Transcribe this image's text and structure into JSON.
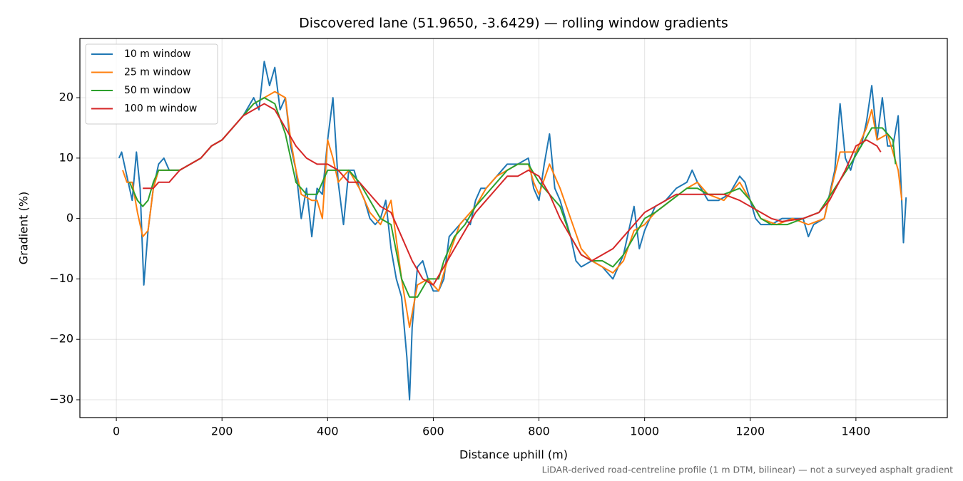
{
  "chart_data": {
    "type": "line",
    "title": "Discovered lane (51.9650, -3.6429) — rolling window gradients",
    "xlabel": "Distance uphill (m)",
    "ylabel": "Gradient (%)",
    "footnote": "LiDAR-derived road-centreline profile (1 m DTM, bilinear) — not a surveyed asphalt gradient",
    "xlim": [
      -69,
      1573
    ],
    "ylim": [
      -32.95,
      29.8
    ],
    "xticks": [
      0,
      200,
      400,
      600,
      800,
      1000,
      1200,
      1400
    ],
    "yticks": [
      {
        "value": -30,
        "label": "−30"
      },
      {
        "value": -20,
        "label": "−20"
      },
      {
        "value": -10,
        "label": "−10"
      },
      0,
      10,
      20
    ],
    "grid": true,
    "legend": "upper left",
    "series": [
      {
        "name": "10 m window",
        "color": "#1f77b4",
        "x": [
          5,
          10,
          20,
          30,
          38,
          45,
          52,
          60,
          70,
          80,
          90,
          100,
          120,
          140,
          160,
          180,
          200,
          220,
          240,
          260,
          270,
          280,
          290,
          300,
          310,
          320,
          330,
          340,
          350,
          360,
          370,
          380,
          390,
          400,
          410,
          420,
          430,
          440,
          450,
          460,
          470,
          480,
          490,
          500,
          510,
          520,
          530,
          540,
          550,
          555,
          560,
          570,
          580,
          590,
          600,
          610,
          620,
          630,
          640,
          660,
          670,
          680,
          690,
          700,
          720,
          740,
          760,
          780,
          790,
          800,
          810,
          820,
          830,
          840,
          850,
          860,
          870,
          880,
          900,
          920,
          940,
          960,
          980,
          990,
          1000,
          1020,
          1040,
          1060,
          1080,
          1090,
          1100,
          1120,
          1140,
          1160,
          1180,
          1190,
          1200,
          1210,
          1220,
          1240,
          1260,
          1280,
          1300,
          1310,
          1320,
          1340,
          1350,
          1360,
          1370,
          1380,
          1390,
          1400,
          1410,
          1420,
          1430,
          1440,
          1450,
          1460,
          1470,
          1480,
          1490,
          1495
        ],
        "values": [
          10,
          11,
          7,
          3,
          11,
          5,
          -11,
          -2,
          5,
          9,
          10,
          8,
          8,
          9,
          10,
          12,
          13,
          15,
          17,
          20,
          18,
          26,
          22,
          25,
          18,
          20,
          12,
          8,
          0,
          5,
          -3,
          5,
          4,
          13,
          20,
          6,
          -1,
          8,
          8,
          5,
          3,
          0,
          -1,
          0,
          3,
          -5,
          -10,
          -13,
          -23,
          -30,
          -18,
          -8,
          -7,
          -10,
          -12,
          -12,
          -10,
          -3,
          -2,
          0,
          -1,
          3,
          5,
          5,
          7,
          9,
          9,
          10,
          5,
          3,
          9,
          14,
          5,
          3,
          0,
          -3,
          -7,
          -8,
          -7,
          -8,
          -10,
          -6,
          2,
          -5,
          -2,
          2,
          3,
          5,
          6,
          8,
          6,
          3,
          3,
          4,
          7,
          6,
          3,
          0,
          -1,
          -1,
          0,
          0,
          0,
          -3,
          -1,
          0,
          4,
          8,
          19,
          10,
          8,
          11,
          12,
          16,
          22,
          13,
          20,
          12,
          12,
          17,
          -4,
          3.5
        ]
      },
      {
        "name": "25 m window",
        "color": "#ff7f0e",
        "x": [
          12,
          20,
          30,
          40,
          50,
          60,
          70,
          80,
          100,
          120,
          140,
          160,
          180,
          200,
          220,
          240,
          260,
          280,
          300,
          320,
          330,
          340,
          350,
          370,
          380,
          390,
          400,
          410,
          420,
          440,
          460,
          480,
          500,
          520,
          540,
          555,
          570,
          590,
          610,
          630,
          650,
          680,
          700,
          720,
          740,
          760,
          780,
          790,
          800,
          820,
          840,
          860,
          880,
          900,
          920,
          940,
          960,
          980,
          1000,
          1020,
          1050,
          1080,
          1100,
          1120,
          1150,
          1180,
          1200,
          1220,
          1250,
          1280,
          1310,
          1340,
          1370,
          1400,
          1420,
          1430,
          1440,
          1460,
          1480,
          1487
        ],
        "values": [
          8,
          6,
          6,
          1,
          -3,
          -2,
          5,
          8,
          8,
          8,
          9,
          10,
          12,
          13,
          15,
          17,
          19,
          20,
          21,
          20,
          13,
          8,
          4,
          3,
          3,
          0,
          13,
          10,
          6,
          8,
          5,
          1,
          -1,
          3,
          -10,
          -18,
          -11,
          -10,
          -12,
          -6,
          -1,
          2,
          5,
          7,
          8,
          9,
          9,
          6,
          4,
          9,
          5,
          0,
          -5,
          -7,
          -8,
          -9,
          -7,
          -2,
          -1,
          1,
          3,
          5,
          6,
          4,
          3,
          6,
          3,
          0,
          -1,
          0,
          -1,
          0,
          11,
          11,
          15,
          18,
          13,
          14,
          8,
          3
        ]
      },
      {
        "name": "50 m window",
        "color": "#2ca02c",
        "x": [
          25,
          40,
          50,
          60,
          70,
          80,
          100,
          120,
          140,
          160,
          180,
          200,
          220,
          240,
          260,
          280,
          300,
          320,
          340,
          360,
          380,
          400,
          420,
          440,
          460,
          480,
          500,
          520,
          540,
          555,
          570,
          590,
          610,
          620,
          640,
          660,
          680,
          700,
          720,
          740,
          760,
          780,
          800,
          820,
          840,
          860,
          880,
          900,
          920,
          940,
          960,
          980,
          1000,
          1020,
          1050,
          1080,
          1100,
          1120,
          1150,
          1180,
          1200,
          1220,
          1240,
          1270,
          1300,
          1330,
          1360,
          1390,
          1410,
          1430,
          1450,
          1470,
          1475
        ],
        "values": [
          6,
          3,
          2,
          3,
          6,
          8,
          8,
          8,
          9,
          10,
          12,
          13,
          15,
          17,
          19,
          20,
          19,
          14,
          6,
          4,
          4,
          8,
          8,
          8,
          6,
          3,
          0,
          -1,
          -10,
          -13,
          -13,
          -10,
          -10,
          -7,
          -3,
          -1,
          2,
          4,
          6,
          8,
          9,
          9,
          6,
          4,
          2,
          -3,
          -6,
          -7,
          -7,
          -8,
          -6,
          -3,
          0,
          1,
          3,
          5,
          5,
          4,
          4,
          5,
          3,
          0,
          -1,
          -1,
          0,
          1,
          5,
          9,
          12,
          15,
          15,
          13,
          9
        ]
      },
      {
        "name": "100 m window",
        "color": "#d62728",
        "x": [
          50,
          70,
          80,
          100,
          120,
          140,
          160,
          180,
          200,
          220,
          240,
          260,
          280,
          300,
          320,
          340,
          360,
          380,
          400,
          420,
          440,
          460,
          480,
          500,
          520,
          540,
          560,
          580,
          600,
          620,
          640,
          660,
          680,
          700,
          720,
          740,
          760,
          780,
          800,
          820,
          840,
          860,
          880,
          900,
          920,
          940,
          960,
          980,
          1000,
          1020,
          1040,
          1060,
          1080,
          1100,
          1120,
          1150,
          1180,
          1200,
          1220,
          1240,
          1260,
          1300,
          1330,
          1350,
          1380,
          1400,
          1420,
          1440,
          1447
        ],
        "values": [
          5,
          5,
          6,
          6,
          8,
          9,
          10,
          12,
          13,
          15,
          17,
          18,
          19,
          18,
          15,
          12,
          10,
          9,
          9,
          8,
          6,
          6,
          4,
          2,
          1,
          -3,
          -7,
          -10,
          -11,
          -8,
          -5,
          -2,
          1,
          3,
          5,
          7,
          7,
          8,
          7,
          4,
          0,
          -3,
          -6,
          -7,
          -6,
          -5,
          -3,
          -1,
          1,
          2,
          3,
          4,
          4,
          4,
          4,
          4,
          3,
          2,
          1,
          0,
          -0.5,
          0,
          1,
          3,
          8,
          12,
          13,
          12,
          11
        ]
      }
    ]
  }
}
